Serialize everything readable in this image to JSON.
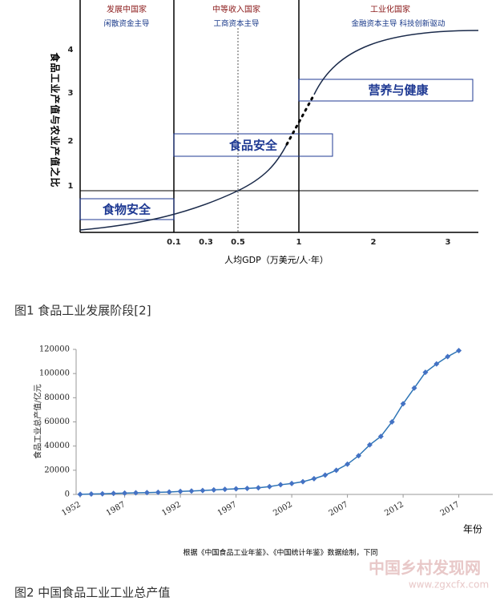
{
  "figure1": {
    "header": [
      {
        "title": "发展中国家",
        "subtitle": "闲散资金主导"
      },
      {
        "title": "中等收入国家",
        "subtitle": "工商资本主导"
      },
      {
        "title": "工业化国家",
        "subtitle": "金融资本主导    科技创新驱动"
      }
    ],
    "y_label": "食品工业产值与农业产值之比",
    "yticks": [
      "1",
      "2",
      "3",
      "4"
    ],
    "xticks": [
      "0.1",
      "0.3",
      "0.5",
      "1",
      "2",
      "3"
    ],
    "x_label": "人均GDP（万美元/人·年）",
    "boxes": [
      "食物安全",
      "食品安全",
      "营养与健康"
    ],
    "caption": "图1 食品工业发展阶段[2]"
  },
  "chart_data": {
    "type": "line",
    "y_label": "食品工业总产值/亿元",
    "x_label": "年份",
    "color": "#2e75b6",
    "marker_color": "#4472c4",
    "categories": [
      "1952",
      null,
      null,
      null,
      "1987",
      null,
      null,
      null,
      null,
      "1992",
      null,
      null,
      null,
      null,
      "1997",
      null,
      null,
      null,
      null,
      "2002",
      null,
      null,
      null,
      null,
      "2007",
      null,
      null,
      null,
      null,
      "2012",
      null,
      null,
      null,
      null,
      "2017"
    ],
    "values": [
      100,
      300,
      500,
      800,
      1100,
      1300,
      1500,
      1700,
      2000,
      2500,
      2800,
      3200,
      3700,
      4200,
      4600,
      5000,
      5500,
      6500,
      8000,
      9000,
      10500,
      13000,
      16000,
      20000,
      25000,
      32000,
      41000,
      48000,
      60000,
      75000,
      88000,
      101000,
      108000,
      114000,
      119000
    ],
    "ylim": [
      0,
      120000
    ],
    "yticks": [
      0,
      20000,
      40000,
      60000,
      80000,
      100000,
      120000
    ],
    "note": "根据《中国食品工业年鉴》、《中国统计年鉴》数据绘制，下同"
  },
  "caption2": "图2 中国食品工业工业总产值",
  "watermark": "中国乡村发现网",
  "watermark_url": "www.zgxcfx.com"
}
